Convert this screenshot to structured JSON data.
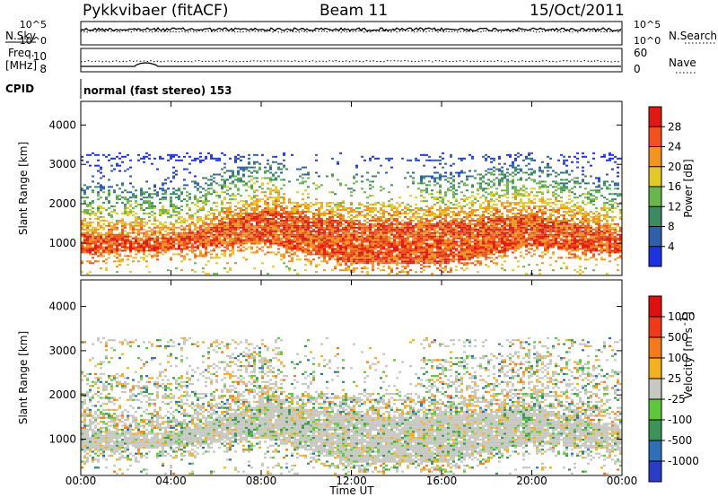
{
  "header": {
    "station": "Pykkvibaer (fitACF)",
    "beam": "Beam 11",
    "date": "15/Oct/2011"
  },
  "noise_panel": {
    "left_label": "N.Sky",
    "left_ticks": [
      "10^5",
      "10^0"
    ],
    "right_label": "N.Search",
    "right_ticks": [
      "10^5",
      "10^0"
    ]
  },
  "freq_panel": {
    "left_label_1": "Freq.",
    "left_label_2": "[MHz]",
    "left_ticks": [
      "10",
      "8"
    ],
    "right_label": "Nave",
    "right_ticks": [
      "60",
      "0"
    ]
  },
  "cpid": {
    "label": "CPID",
    "mode": "normal (fast stereo) 153"
  },
  "chart_data": [
    {
      "type": "heatmap",
      "title": "Power",
      "ylabel": "Slant Range [km]",
      "xlabel": "Time UT",
      "yticks": [
        "1000",
        "2000",
        "3000",
        "4000"
      ],
      "ylim": [
        180,
        4600
      ],
      "colorbar": {
        "label": "Power [dB]",
        "ticks": [
          "4",
          "8",
          "12",
          "16",
          "20",
          "24",
          "28"
        ],
        "colors": [
          "#1d32e0",
          "#2f5fa8",
          "#3a8a62",
          "#6ab64c",
          "#e2c92a",
          "#f39321",
          "#f2501c",
          "#e01a12"
        ]
      },
      "description_data": {
        "strong_echo_band": [
          {
            "time_h": 0,
            "range_min_km": 700,
            "range_max_km": 1200
          },
          {
            "time_h": 4,
            "range_min_km": 800,
            "range_max_km": 1100
          },
          {
            "time_h": 8,
            "range_min_km": 1000,
            "range_max_km": 1800
          },
          {
            "time_h": 12,
            "range_min_km": 450,
            "range_max_km": 1500
          },
          {
            "time_h": 16,
            "range_min_km": 450,
            "range_max_km": 1500
          },
          {
            "time_h": 20,
            "range_min_km": 900,
            "range_max_km": 1700
          },
          {
            "time_h": 24,
            "range_min_km": 700,
            "range_max_km": 1200
          }
        ]
      }
    },
    {
      "type": "heatmap",
      "title": "Velocity",
      "ylabel": "Slant Range [km]",
      "xlabel": "Time UT",
      "yticks": [
        "1000",
        "2000",
        "3000",
        "4000"
      ],
      "ylim": [
        180,
        4600
      ],
      "colorbar": {
        "label": "Velocity",
        "units": "[m s",
        "units_exp": "-1",
        "units_end": "]",
        "ticks": [
          "1000",
          "500",
          "100",
          "25",
          "-25",
          "-100",
          "-500",
          "-1000"
        ],
        "colors": [
          "#2a3cc8",
          "#2f6fb8",
          "#3b9458",
          "#5ec83a",
          "#c8c8c2",
          "#f3b021",
          "#f57a1e",
          "#ee3a18",
          "#e01010"
        ]
      }
    }
  ],
  "xaxis": {
    "ticks": [
      "00:00",
      "04:00",
      "08:00",
      "12:00",
      "16:00",
      "20:00",
      "00:00"
    ],
    "label": "Time UT"
  }
}
